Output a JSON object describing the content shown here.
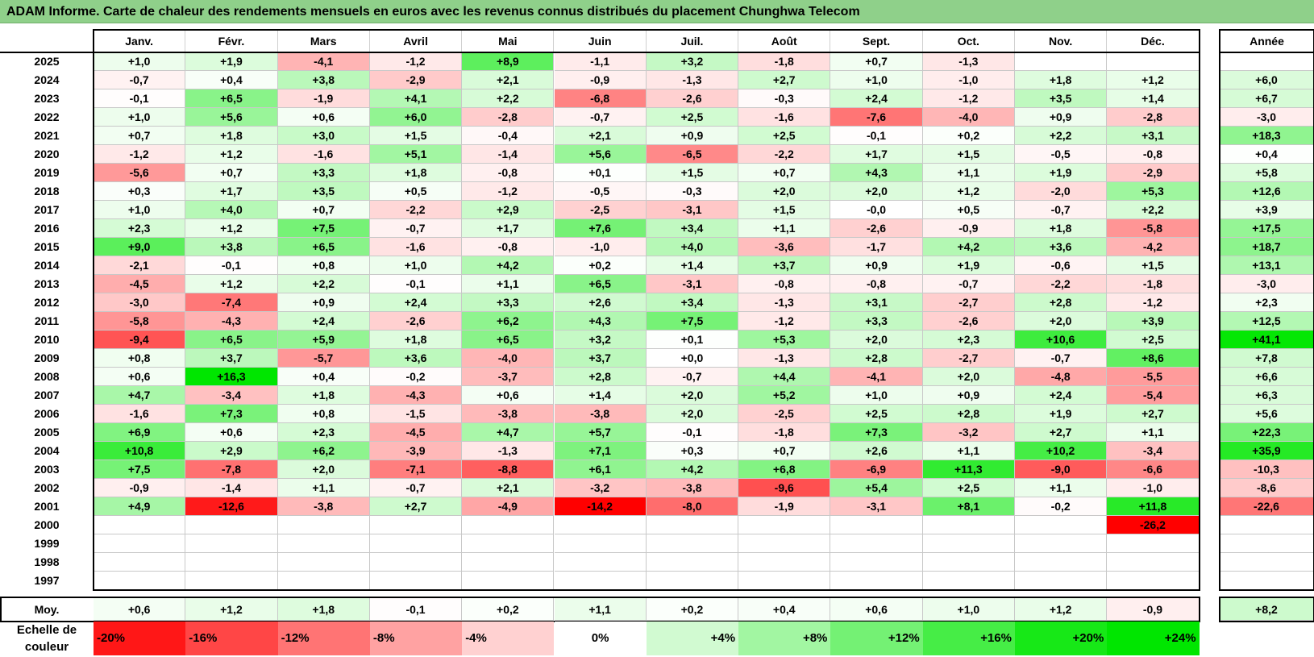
{
  "title": "ADAM Informe. Carte de chaleur des rendements mensuels en euros avec les revenus connus distribués du placement Chunghwa Telecom",
  "chart_data": {
    "type": "heatmap",
    "months": [
      "Janv.",
      "Févr.",
      "Mars",
      "Avril",
      "Mai",
      "Juin",
      "Juil.",
      "Août",
      "Sept.",
      "Oct.",
      "Nov.",
      "Déc."
    ],
    "year_header": "Année",
    "rows": [
      {
        "year": "2025",
        "months": [
          "+1,0",
          "+1,9",
          "-4,1",
          "-1,2",
          "+8,9",
          "-1,1",
          "+3,2",
          "-1,8",
          "+0,7",
          "-1,3",
          "",
          ""
        ],
        "annual": ""
      },
      {
        "year": "2024",
        "months": [
          "-0,7",
          "+0,4",
          "+3,8",
          "-2,9",
          "+2,1",
          "-0,9",
          "-1,3",
          "+2,7",
          "+1,0",
          "-1,0",
          "+1,8",
          "+1,2"
        ],
        "annual": "+6,0"
      },
      {
        "year": "2023",
        "months": [
          "-0,1",
          "+6,5",
          "-1,9",
          "+4,1",
          "+2,2",
          "-6,8",
          "-2,6",
          "-0,3",
          "+2,4",
          "-1,2",
          "+3,5",
          "+1,4"
        ],
        "annual": "+6,7"
      },
      {
        "year": "2022",
        "months": [
          "+1,0",
          "+5,6",
          "+0,6",
          "+6,0",
          "-2,8",
          "-0,7",
          "+2,5",
          "-1,6",
          "-7,6",
          "-4,0",
          "+0,9",
          "-2,8"
        ],
        "annual": "-3,0"
      },
      {
        "year": "2021",
        "months": [
          "+0,7",
          "+1,8",
          "+3,0",
          "+1,5",
          "-0,4",
          "+2,1",
          "+0,9",
          "+2,5",
          "-0,1",
          "+0,2",
          "+2,2",
          "+3,1"
        ],
        "annual": "+18,3"
      },
      {
        "year": "2020",
        "months": [
          "-1,2",
          "+1,2",
          "-1,6",
          "+5,1",
          "-1,4",
          "+5,6",
          "-6,5",
          "-2,2",
          "+1,7",
          "+1,5",
          "-0,5",
          "-0,8"
        ],
        "annual": "+0,4"
      },
      {
        "year": "2019",
        "months": [
          "-5,6",
          "+0,7",
          "+3,3",
          "+1,8",
          "-0,8",
          "+0,1",
          "+1,5",
          "+0,7",
          "+4,3",
          "+1,1",
          "+1,9",
          "-2,9"
        ],
        "annual": "+5,8"
      },
      {
        "year": "2018",
        "months": [
          "+0,3",
          "+1,7",
          "+3,5",
          "+0,5",
          "-1,2",
          "-0,5",
          "-0,3",
          "+2,0",
          "+2,0",
          "+1,2",
          "-2,0",
          "+5,3"
        ],
        "annual": "+12,6"
      },
      {
        "year": "2017",
        "months": [
          "+1,0",
          "+4,0",
          "+0,7",
          "-2,2",
          "+2,9",
          "-2,5",
          "-3,1",
          "+1,5",
          "-0,0",
          "+0,5",
          "-0,7",
          "+2,2"
        ],
        "annual": "+3,9"
      },
      {
        "year": "2016",
        "months": [
          "+2,3",
          "+1,2",
          "+7,5",
          "-0,7",
          "+1,7",
          "+7,6",
          "+3,4",
          "+1,1",
          "-2,6",
          "-0,9",
          "+1,8",
          "-5,8"
        ],
        "annual": "+17,5"
      },
      {
        "year": "2015",
        "months": [
          "+9,0",
          "+3,8",
          "+6,5",
          "-1,6",
          "-0,8",
          "-1,0",
          "+4,0",
          "-3,6",
          "-1,7",
          "+4,2",
          "+3,6",
          "-4,2"
        ],
        "annual": "+18,7"
      },
      {
        "year": "2014",
        "months": [
          "-2,1",
          "-0,1",
          "+0,8",
          "+1,0",
          "+4,2",
          "+0,2",
          "+1,4",
          "+3,7",
          "+0,9",
          "+1,9",
          "-0,6",
          "+1,5"
        ],
        "annual": "+13,1"
      },
      {
        "year": "2013",
        "months": [
          "-4,5",
          "+1,2",
          "+2,2",
          "-0,1",
          "+1,1",
          "+6,5",
          "-3,1",
          "-0,8",
          "-0,8",
          "-0,7",
          "-2,2",
          "-1,8"
        ],
        "annual": "-3,0"
      },
      {
        "year": "2012",
        "months": [
          "-3,0",
          "-7,4",
          "+0,9",
          "+2,4",
          "+3,3",
          "+2,6",
          "+3,4",
          "-1,3",
          "+3,1",
          "-2,7",
          "+2,8",
          "-1,2"
        ],
        "annual": "+2,3"
      },
      {
        "year": "2011",
        "months": [
          "-5,8",
          "-4,3",
          "+2,4",
          "-2,6",
          "+6,2",
          "+4,3",
          "+7,5",
          "-1,2",
          "+3,3",
          "-2,6",
          "+2,0",
          "+3,9"
        ],
        "annual": "+12,5"
      },
      {
        "year": "2010",
        "months": [
          "-9,4",
          "+6,5",
          "+5,9",
          "+1,8",
          "+6,5",
          "+3,2",
          "+0,1",
          "+5,3",
          "+2,0",
          "+2,3",
          "+10,6",
          "+2,5"
        ],
        "annual": "+41,1"
      },
      {
        "year": "2009",
        "months": [
          "+0,8",
          "+3,7",
          "-5,7",
          "+3,6",
          "-4,0",
          "+3,7",
          "+0,0",
          "-1,3",
          "+2,8",
          "-2,7",
          "-0,7",
          "+8,6"
        ],
        "annual": "+7,8"
      },
      {
        "year": "2008",
        "months": [
          "+0,6",
          "+16,3",
          "+0,4",
          "-0,2",
          "-3,7",
          "+2,8",
          "-0,7",
          "+4,4",
          "-4,1",
          "+2,0",
          "-4,8",
          "-5,5"
        ],
        "annual": "+6,6"
      },
      {
        "year": "2007",
        "months": [
          "+4,7",
          "-3,4",
          "+1,8",
          "-4,3",
          "+0,6",
          "+1,4",
          "+2,0",
          "+5,2",
          "+1,0",
          "+0,9",
          "+2,4",
          "-5,4"
        ],
        "annual": "+6,3"
      },
      {
        "year": "2006",
        "months": [
          "-1,6",
          "+7,3",
          "+0,8",
          "-1,5",
          "-3,8",
          "-3,8",
          "+2,0",
          "-2,5",
          "+2,5",
          "+2,8",
          "+1,9",
          "+2,7"
        ],
        "annual": "+5,6"
      },
      {
        "year": "2005",
        "months": [
          "+6,9",
          "+0,6",
          "+2,3",
          "-4,5",
          "+4,7",
          "+5,7",
          "-0,1",
          "-1,8",
          "+7,3",
          "-3,2",
          "+2,7",
          "+1,1"
        ],
        "annual": "+22,3"
      },
      {
        "year": "2004",
        "months": [
          "+10,8",
          "+2,9",
          "+6,2",
          "-3,9",
          "-1,3",
          "+7,1",
          "+0,3",
          "+0,7",
          "+2,6",
          "+1,1",
          "+10,2",
          "-3,4"
        ],
        "annual": "+35,9"
      },
      {
        "year": "2003",
        "months": [
          "+7,5",
          "-7,8",
          "+2,0",
          "-7,1",
          "-8,8",
          "+6,1",
          "+4,2",
          "+6,8",
          "-6,9",
          "+11,3",
          "-9,0",
          "-6,6"
        ],
        "annual": "-10,3"
      },
      {
        "year": "2002",
        "months": [
          "-0,9",
          "-1,4",
          "+1,1",
          "-0,7",
          "+2,1",
          "-3,2",
          "-3,8",
          "-9,6",
          "+5,4",
          "+2,5",
          "+1,1",
          "-1,0"
        ],
        "annual": "-8,6"
      },
      {
        "year": "2001",
        "months": [
          "+4,9",
          "-12,6",
          "-3,8",
          "+2,7",
          "-4,9",
          "-14,2",
          "-8,0",
          "-1,9",
          "-3,1",
          "+8,1",
          "-0,2",
          "+11,8"
        ],
        "annual": "-22,6"
      },
      {
        "year": "2000",
        "months": [
          "",
          "",
          "",
          "",
          "",
          "",
          "",
          "",
          "",
          "",
          "",
          "-26,2"
        ],
        "annual": ""
      },
      {
        "year": "1999",
        "months": [
          "",
          "",
          "",
          "",
          "",
          "",
          "",
          "",
          "",
          "",
          "",
          ""
        ],
        "annual": ""
      },
      {
        "year": "1998",
        "months": [
          "",
          "",
          "",
          "",
          "",
          "",
          "",
          "",
          "",
          "",
          "",
          ""
        ],
        "annual": ""
      },
      {
        "year": "1997",
        "months": [
          "",
          "",
          "",
          "",
          "",
          "",
          "",
          "",
          "",
          "",
          "",
          ""
        ],
        "annual": ""
      }
    ],
    "average": {
      "label": "Moy.",
      "months": [
        "+0,6",
        "+1,2",
        "+1,8",
        "-0,1",
        "+0,2",
        "+1,1",
        "+0,2",
        "+0,4",
        "+0,6",
        "+1,0",
        "+1,2",
        "-0,9"
      ],
      "annual": "+8,2"
    },
    "scale": {
      "label": "Echelle de\ncouleur",
      "steps": [
        "-20%",
        "-16%",
        "-12%",
        "-8%",
        "-4%",
        "0%",
        "+4%",
        "+8%",
        "+12%",
        "+16%",
        "+20%",
        "+24%"
      ],
      "values": [
        -20,
        -16,
        -12,
        -8,
        -4,
        0,
        4,
        8,
        12,
        16,
        20,
        24
      ]
    },
    "colors": {
      "negative": "#ff0000",
      "neutral": "#ffffff",
      "positive": "#00e600",
      "title_bar": "#8fd08a"
    }
  }
}
